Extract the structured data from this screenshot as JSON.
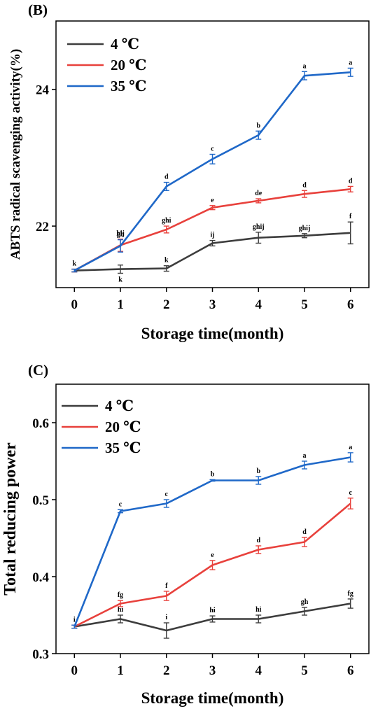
{
  "chart_data": [
    {
      "type": "line",
      "panel_label": "(B)",
      "xlabel": "Storage time(month)",
      "ylabel": "ABTS radical scavenging activity(%)",
      "x": [
        0,
        1,
        2,
        3,
        4,
        5,
        6
      ],
      "xlim": [
        -0.4,
        6.4
      ],
      "ylim": [
        21.1,
        25.0
      ],
      "yticks": [
        22,
        24
      ],
      "legend_position": "top-left",
      "series": [
        {
          "name": "4 ℃",
          "color": "#3d3d3d",
          "values": [
            21.35,
            21.37,
            21.38,
            21.75,
            21.83,
            21.86,
            21.9
          ],
          "errors": [
            0.02,
            0.06,
            0.04,
            0.04,
            0.08,
            0.03,
            0.16
          ],
          "letters": [
            "k",
            "k",
            "k",
            "ij",
            "ghij",
            "ghij",
            "f"
          ],
          "letter_positions": [
            "above",
            "below",
            "above",
            "above",
            "above",
            "above",
            "above"
          ]
        },
        {
          "name": "20 ℃",
          "color": "#e8413c",
          "values": [
            21.35,
            21.72,
            21.95,
            22.27,
            22.37,
            22.47,
            22.54
          ],
          "errors": [
            0.02,
            0.09,
            0.05,
            0.03,
            0.03,
            0.05,
            0.04
          ],
          "letters": [
            "",
            "hij",
            "ghi",
            "e",
            "de",
            "d",
            "d"
          ],
          "letter_positions": [
            "above",
            "above",
            "above",
            "above",
            "above",
            "above",
            "above"
          ]
        },
        {
          "name": "35 ℃",
          "color": "#1f68c8",
          "values": [
            21.35,
            21.71,
            22.58,
            22.98,
            23.33,
            24.2,
            24.25
          ],
          "errors": [
            0.02,
            0.09,
            0.06,
            0.07,
            0.06,
            0.06,
            0.06
          ],
          "letters": [
            "",
            "gh",
            "d",
            "c",
            "b",
            "a",
            "a"
          ],
          "letter_positions": [
            "above",
            "above",
            "above",
            "above",
            "above",
            "above",
            "above"
          ]
        }
      ]
    },
    {
      "type": "line",
      "panel_label": "(C)",
      "xlabel": "Storage time(month)",
      "ylabel": "Total reducing power",
      "x": [
        0,
        1,
        2,
        3,
        4,
        5,
        6
      ],
      "xlim": [
        -0.4,
        6.4
      ],
      "ylim": [
        0.3,
        0.65
      ],
      "yticks": [
        0.3,
        0.4,
        0.5,
        0.6
      ],
      "legend_position": "top-left",
      "series": [
        {
          "name": "4 ℃",
          "color": "#3d3d3d",
          "values": [
            0.335,
            0.345,
            0.33,
            0.345,
            0.345,
            0.355,
            0.365
          ],
          "errors": [
            0.002,
            0.005,
            0.01,
            0.004,
            0.005,
            0.005,
            0.006
          ],
          "letters": [
            "i",
            "hi",
            "i",
            "hi",
            "hi",
            "gh",
            "fg"
          ],
          "letter_positions": [
            "above",
            "above",
            "above",
            "above",
            "above",
            "above",
            "above"
          ]
        },
        {
          "name": "20 ℃",
          "color": "#e8413c",
          "values": [
            0.335,
            0.365,
            0.375,
            0.415,
            0.435,
            0.445,
            0.495
          ],
          "errors": [
            0.002,
            0.004,
            0.006,
            0.006,
            0.005,
            0.006,
            0.007
          ],
          "letters": [
            "",
            "fg",
            "f",
            "e",
            "d",
            "d",
            "c"
          ],
          "letter_positions": [
            "above",
            "above",
            "above",
            "above",
            "above",
            "above",
            "above"
          ]
        },
        {
          "name": "35 ℃",
          "color": "#1f68c8",
          "values": [
            0.335,
            0.485,
            0.495,
            0.525,
            0.525,
            0.545,
            0.555
          ],
          "errors": [
            0.002,
            0.002,
            0.005,
            0.001,
            0.005,
            0.005,
            0.006
          ],
          "letters": [
            "",
            "c",
            "c",
            "b",
            "b",
            "a",
            "a"
          ],
          "letter_positions": [
            "above",
            "above",
            "above",
            "above",
            "above",
            "above",
            "above"
          ]
        }
      ]
    }
  ]
}
